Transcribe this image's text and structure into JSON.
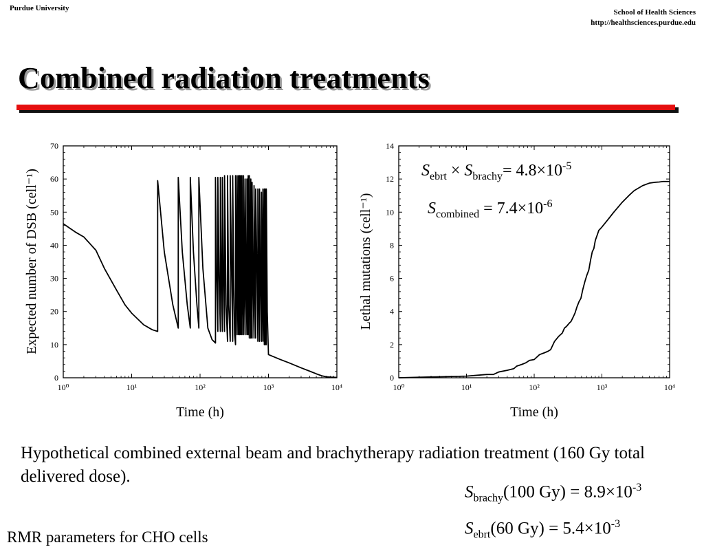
{
  "header": {
    "left": "Purdue University",
    "right_line1": "School of Health Sciences",
    "right_line2": "http://healthsciences.purdue.edu"
  },
  "slide": {
    "title": "Combined radiation treatments",
    "description": "Hypothetical combined external beam and brachytherapy radiation treatment (160 Gy total delivered dose).",
    "footer": "RMR parameters for CHO cells",
    "formulas": {
      "brachy": {
        "sym": "S",
        "sub": "brachy",
        "dose": "(100 Gy) = 8.9×10",
        "exp": "-3"
      },
      "ebrt": {
        "sym": "S",
        "sub": "ebrt",
        "dose": "(60 Gy) = 5.4×10",
        "exp": "-3"
      }
    },
    "annotations": {
      "product": {
        "s1": "S",
        "sub1": "ebrt",
        "times": " × ",
        "s2": "S",
        "sub2": "brachy",
        "eq": "= 4.8×10",
        "exp": "-5"
      },
      "combined": {
        "s": "S",
        "sub": "combined",
        "eq": " = 7.4×10",
        "exp": "-6"
      }
    }
  },
  "colors": {
    "accent_rule": "#e50f0f",
    "title_shadow": "#9a9a9a"
  },
  "chart_data": [
    {
      "type": "line",
      "xlabel": "Time (h)",
      "ylabel": "Expected number of DSB (cell⁻¹)",
      "xscale": "log",
      "xlim": [
        1,
        10000
      ],
      "ylim": [
        0,
        70
      ],
      "xticks": [
        "10⁰",
        "10¹",
        "10²",
        "10³",
        "10⁴"
      ],
      "yticks": [
        "0",
        "10",
        "20",
        "30",
        "40",
        "50",
        "60",
        "70"
      ],
      "series": [
        {
          "x": [
            1,
            1.5,
            2,
            3,
            4,
            6,
            8,
            10,
            15,
            20,
            24,
            24,
            30,
            40,
            48,
            48,
            55,
            65,
            72,
            72,
            80,
            90,
            96,
            96,
            110,
            130,
            150,
            168,
            168,
            175,
            182,
            182,
            190,
            198,
            198,
            205,
            212,
            212,
            220,
            228,
            228,
            240,
            252,
            252,
            262,
            276,
            276,
            290,
            300,
            300,
            310,
            320,
            330,
            330,
            340,
            348,
            348,
            357,
            365,
            365,
            373,
            380,
            380,
            388,
            395,
            395,
            402,
            410,
            410,
            420,
            432,
            432,
            445,
            456,
            456,
            470,
            485,
            485,
            495,
            505,
            505,
            515,
            525,
            525,
            540,
            552,
            552,
            565,
            576,
            576,
            595,
            615,
            615,
            635,
            650,
            650,
            680,
            700,
            700,
            720,
            740,
            740,
            765,
            790,
            790,
            810,
            830,
            830,
            850,
            870,
            870,
            885,
            900,
            900,
            915,
            930,
            930,
            960,
            1000,
            1500,
            2000,
            3000,
            4000,
            5000,
            6000,
            7000,
            8000,
            10000
          ],
          "y": [
            46.5,
            44,
            42.5,
            38.5,
            33,
            26.5,
            22,
            19.5,
            16,
            14.5,
            14,
            59.5,
            38,
            22,
            15,
            60.5,
            38,
            22,
            15,
            60.5,
            38,
            22,
            15,
            60.5,
            33,
            15,
            11.5,
            10.5,
            60.5,
            30,
            14,
            60.5,
            30,
            14,
            60.5,
            30,
            14,
            60.5,
            30,
            14,
            61,
            22,
            11,
            61,
            22,
            11,
            61,
            30,
            11,
            61,
            30,
            13,
            10,
            61,
            30,
            13,
            61,
            30,
            13,
            61,
            30,
            13,
            61,
            30,
            13,
            61,
            30,
            13,
            61,
            30,
            13,
            61,
            30,
            13,
            60,
            30,
            13,
            60,
            30,
            13,
            61,
            30,
            12,
            61,
            30,
            12,
            60,
            30,
            12,
            59,
            30,
            12,
            58,
            30,
            12,
            57,
            30,
            11,
            57,
            30,
            11,
            57,
            30,
            11,
            56,
            30,
            11,
            57,
            30,
            10,
            57,
            30,
            10,
            57,
            30,
            10,
            57,
            20,
            7,
            5.5,
            4.5,
            3,
            2,
            1.2,
            0.6,
            0.3,
            0.2,
            0.1
          ]
        }
      ]
    },
    {
      "type": "line",
      "xlabel": "Time (h)",
      "ylabel": "Lethal mutations (cell⁻¹)",
      "xscale": "log",
      "xlim": [
        1,
        10000
      ],
      "ylim": [
        0,
        14
      ],
      "xticks": [
        "10⁰",
        "10¹",
        "10²",
        "10³",
        "10⁴"
      ],
      "yticks": [
        "0",
        "2",
        "4",
        "6",
        "8",
        "10",
        "12",
        "14"
      ],
      "series": [
        {
          "x": [
            1,
            3,
            10,
            20,
            25,
            30,
            40,
            50,
            55,
            65,
            75,
            85,
            100,
            120,
            140,
            160,
            175,
            200,
            230,
            260,
            280,
            300,
            330,
            350,
            380,
            400,
            430,
            460,
            490,
            520,
            560,
            600,
            640,
            680,
            720,
            760,
            800,
            850,
            900,
            950,
            1000,
            1200,
            1500,
            2000,
            2500,
            3000,
            4000,
            5000,
            6000,
            7000,
            8000,
            10000
          ],
          "y": [
            0,
            0.05,
            0.1,
            0.2,
            0.2,
            0.35,
            0.45,
            0.55,
            0.7,
            0.8,
            0.9,
            1.05,
            1.1,
            1.4,
            1.5,
            1.6,
            1.7,
            2.2,
            2.5,
            2.7,
            3.0,
            3.1,
            3.3,
            3.4,
            3.7,
            3.9,
            4.3,
            4.6,
            4.8,
            5.3,
            5.8,
            6.2,
            6.5,
            7.1,
            7.6,
            7.8,
            8.3,
            8.6,
            8.9,
            9.0,
            9.1,
            9.5,
            10.0,
            10.6,
            11.0,
            11.3,
            11.6,
            11.75,
            11.8,
            11.82,
            11.85,
            11.85
          ]
        }
      ]
    }
  ]
}
